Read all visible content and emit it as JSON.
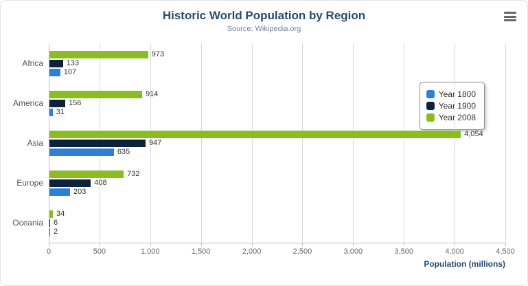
{
  "header": {
    "title": "Historic World Population by Region",
    "subtitle": "Source: Wikipedia.org"
  },
  "colors": {
    "title": "#274b6d",
    "subtitle": "#6d869f",
    "axis_title": "#274b6d",
    "tick_label": "#666666",
    "category_label": "#555555",
    "gridline": "#d8d8d8",
    "axis_line": "#c0c0c0"
  },
  "chart_data": {
    "type": "bar",
    "orientation": "horizontal",
    "title": "Historic World Population by Region",
    "subtitle": "Source: Wikipedia.org",
    "categories": [
      "Africa",
      "America",
      "Asia",
      "Europe",
      "Oceania"
    ],
    "series": [
      {
        "name": "Year 1800",
        "color": "#2f7ed8",
        "values": [
          107,
          31,
          635,
          203,
          2
        ]
      },
      {
        "name": "Year 1900",
        "color": "#0d233a",
        "values": [
          133,
          156,
          947,
          408,
          6
        ]
      },
      {
        "name": "Year 2008",
        "color": "#8bbc21",
        "values": [
          973,
          914,
          4054,
          732,
          34
        ]
      }
    ],
    "series_display_order_top_to_bottom": [
      "Year 2008",
      "Year 1900",
      "Year 1800"
    ],
    "xlabel": "Population (millions)",
    "xlim": [
      0,
      4500
    ],
    "xticks": [
      0,
      500,
      1000,
      1500,
      2000,
      2500,
      3000,
      3500,
      4000,
      4500
    ],
    "grid": true,
    "legend_position": "right",
    "data_labels": true
  }
}
